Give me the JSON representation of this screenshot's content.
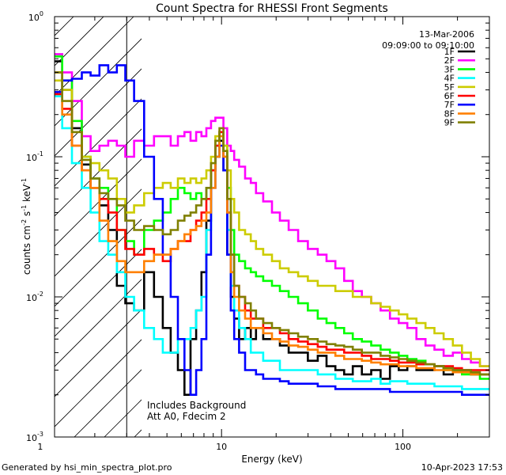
{
  "chart_data": {
    "type": "line",
    "title": "Count Spectra for RHESSI Front Segments",
    "xlabel": "Energy (keV)",
    "ylabel_parts": [
      "counts cm",
      "-2",
      " s",
      "-1",
      " keV",
      "-1"
    ],
    "xscale": "log",
    "yscale": "log",
    "xlim": [
      1.2,
      300
    ],
    "ylim": [
      0.001,
      1
    ],
    "x_ticks": [
      {
        "value": 1,
        "label": "1"
      },
      {
        "value": 10,
        "label": "10"
      },
      {
        "value": 100,
        "label": "100"
      }
    ],
    "y_ticks": [
      {
        "value": 0.001,
        "base": "10",
        "exp": "-3"
      },
      {
        "value": 0.01,
        "base": "10",
        "exp": "-2"
      },
      {
        "value": 0.1,
        "base": "10",
        "exp": "-1"
      },
      {
        "value": 1,
        "base": "10",
        "exp": "0"
      }
    ],
    "date": "13-Mar-2006",
    "time_range": "09:09:00 to 09:10:00",
    "shaded_region_xmax": 3,
    "annotations": [
      "Includes Background",
      "Att A0, Fdecim 2"
    ],
    "legend_position": "top-right",
    "x": [
      1.25,
      1.4,
      1.6,
      1.8,
      2.0,
      2.25,
      2.5,
      2.8,
      3.1,
      3.5,
      4.0,
      4.5,
      5.0,
      5.5,
      6.0,
      6.5,
      7.0,
      7.5,
      8.0,
      8.5,
      9.0,
      9.5,
      10.0,
      10.5,
      11.0,
      11.5,
      12,
      13,
      14,
      15,
      16,
      18,
      20,
      22,
      25,
      28,
      32,
      36,
      40,
      45,
      50,
      56,
      63,
      71,
      80,
      90,
      100,
      112,
      126,
      141,
      158,
      178,
      200,
      224,
      251,
      282
    ],
    "series": [
      {
        "name": "1F",
        "color": "#000000",
        "values": [
          0.48,
          0.3,
          0.16,
          0.088,
          0.06,
          0.045,
          0.03,
          0.012,
          0.009,
          0.008,
          0.015,
          0.01,
          0.006,
          0.004,
          0.003,
          0.002,
          0.005,
          0.008,
          0.015,
          0.035,
          0.08,
          0.12,
          0.13,
          0.08,
          0.02,
          0.01,
          0.007,
          0.005,
          0.006,
          0.005,
          0.006,
          0.005,
          0.005,
          0.0045,
          0.004,
          0.004,
          0.0035,
          0.0038,
          0.0032,
          0.003,
          0.0028,
          0.0032,
          0.0028,
          0.003,
          0.0026,
          0.0032,
          0.003,
          0.0032,
          0.003,
          0.003,
          0.0032,
          0.0028,
          0.003,
          0.003,
          0.0028,
          0.0028
        ]
      },
      {
        "name": "2F",
        "color": "#ff00ff",
        "values": [
          0.54,
          0.4,
          0.25,
          0.14,
          0.11,
          0.12,
          0.13,
          0.12,
          0.1,
          0.13,
          0.12,
          0.14,
          0.14,
          0.12,
          0.14,
          0.15,
          0.13,
          0.15,
          0.14,
          0.16,
          0.18,
          0.19,
          0.19,
          0.16,
          0.12,
          0.11,
          0.095,
          0.085,
          0.07,
          0.065,
          0.055,
          0.048,
          0.04,
          0.035,
          0.03,
          0.025,
          0.022,
          0.02,
          0.018,
          0.016,
          0.013,
          0.011,
          0.01,
          0.009,
          0.008,
          0.007,
          0.0065,
          0.006,
          0.005,
          0.0045,
          0.0042,
          0.0038,
          0.004,
          0.0036,
          0.0034,
          0.0032
        ]
      },
      {
        "name": "3F",
        "color": "#00ff00",
        "values": [
          0.52,
          0.35,
          0.18,
          0.1,
          0.07,
          0.06,
          0.05,
          0.03,
          0.025,
          0.02,
          0.03,
          0.035,
          0.04,
          0.05,
          0.06,
          0.055,
          0.05,
          0.055,
          0.05,
          0.06,
          0.08,
          0.1,
          0.15,
          0.12,
          0.06,
          0.03,
          0.02,
          0.018,
          0.016,
          0.015,
          0.014,
          0.013,
          0.012,
          0.011,
          0.01,
          0.009,
          0.008,
          0.007,
          0.0065,
          0.006,
          0.0055,
          0.005,
          0.0048,
          0.0045,
          0.0042,
          0.004,
          0.0038,
          0.0036,
          0.0035,
          0.0033,
          0.0032,
          0.003,
          0.003,
          0.0028,
          0.0028,
          0.0026
        ]
      },
      {
        "name": "4F",
        "color": "#00ffff",
        "values": [
          0.27,
          0.16,
          0.09,
          0.06,
          0.04,
          0.025,
          0.02,
          0.015,
          0.01,
          0.008,
          0.006,
          0.005,
          0.004,
          0.004,
          0.005,
          0.005,
          0.006,
          0.008,
          0.01,
          0.03,
          0.08,
          0.12,
          0.15,
          0.1,
          0.03,
          0.012,
          0.008,
          0.006,
          0.005,
          0.004,
          0.004,
          0.0035,
          0.0035,
          0.003,
          0.003,
          0.003,
          0.003,
          0.0028,
          0.0028,
          0.0026,
          0.0026,
          0.0025,
          0.0025,
          0.0026,
          0.0024,
          0.0025,
          0.0025,
          0.0024,
          0.0024,
          0.0024,
          0.0023,
          0.0023,
          0.0023,
          0.0022,
          0.0022,
          0.0022
        ]
      },
      {
        "name": "5F",
        "color": "#cccc00",
        "values": [
          0.35,
          0.3,
          0.15,
          0.1,
          0.09,
          0.08,
          0.07,
          0.05,
          0.04,
          0.045,
          0.055,
          0.06,
          0.065,
          0.06,
          0.07,
          0.065,
          0.07,
          0.065,
          0.07,
          0.08,
          0.1,
          0.14,
          0.15,
          0.12,
          0.08,
          0.05,
          0.04,
          0.03,
          0.028,
          0.025,
          0.022,
          0.02,
          0.018,
          0.016,
          0.015,
          0.014,
          0.013,
          0.012,
          0.012,
          0.011,
          0.011,
          0.01,
          0.01,
          0.009,
          0.0085,
          0.008,
          0.0075,
          0.007,
          0.0065,
          0.006,
          0.0055,
          0.005,
          0.0045,
          0.004,
          0.0036,
          0.0032
        ]
      },
      {
        "name": "6F",
        "color": "#ff0000",
        "values": [
          0.28,
          0.22,
          0.12,
          0.08,
          0.06,
          0.05,
          0.04,
          0.03,
          0.022,
          0.02,
          0.022,
          0.02,
          0.018,
          0.022,
          0.025,
          0.025,
          0.03,
          0.035,
          0.04,
          0.05,
          0.08,
          0.12,
          0.15,
          0.1,
          0.04,
          0.02,
          0.012,
          0.01,
          0.008,
          0.007,
          0.007,
          0.006,
          0.006,
          0.0055,
          0.005,
          0.0048,
          0.0046,
          0.0044,
          0.0042,
          0.0042,
          0.004,
          0.004,
          0.0038,
          0.0036,
          0.0036,
          0.0035,
          0.0034,
          0.0034,
          0.0033,
          0.0033,
          0.0032,
          0.0032,
          0.0031,
          0.003,
          0.003,
          0.003
        ]
      },
      {
        "name": "7F",
        "color": "#0000ff",
        "values": [
          0.29,
          0.35,
          0.36,
          0.4,
          0.38,
          0.45,
          0.4,
          0.45,
          0.35,
          0.25,
          0.1,
          0.05,
          0.02,
          0.01,
          0.005,
          0.003,
          0.002,
          0.003,
          0.005,
          0.02,
          0.06,
          0.1,
          0.12,
          0.08,
          0.02,
          0.008,
          0.005,
          0.004,
          0.003,
          0.003,
          0.0028,
          0.0026,
          0.0026,
          0.0025,
          0.0024,
          0.0024,
          0.0024,
          0.0023,
          0.0023,
          0.0022,
          0.0022,
          0.0022,
          0.0022,
          0.0022,
          0.0022,
          0.0021,
          0.0021,
          0.0021,
          0.0021,
          0.0021,
          0.0021,
          0.0021,
          0.0021,
          0.002,
          0.002,
          0.002
        ]
      },
      {
        "name": "8F",
        "color": "#ff8000",
        "values": [
          0.4,
          0.2,
          0.12,
          0.08,
          0.06,
          0.035,
          0.025,
          0.018,
          0.015,
          0.015,
          0.018,
          0.02,
          0.02,
          0.022,
          0.025,
          0.028,
          0.03,
          0.032,
          0.035,
          0.04,
          0.06,
          0.1,
          0.14,
          0.1,
          0.04,
          0.015,
          0.01,
          0.008,
          0.007,
          0.006,
          0.006,
          0.0055,
          0.005,
          0.0048,
          0.0045,
          0.0044,
          0.0042,
          0.004,
          0.004,
          0.0038,
          0.0036,
          0.0036,
          0.0035,
          0.0034,
          0.0033,
          0.0033,
          0.0032,
          0.0032,
          0.0031,
          0.0031,
          0.003,
          0.003,
          0.0029,
          0.0029,
          0.0028,
          0.0028
        ]
      },
      {
        "name": "9F",
        "color": "#808000",
        "values": [
          0.4,
          0.25,
          0.15,
          0.095,
          0.07,
          0.055,
          0.05,
          0.045,
          0.035,
          0.03,
          0.032,
          0.03,
          0.028,
          0.03,
          0.035,
          0.038,
          0.04,
          0.045,
          0.05,
          0.06,
          0.09,
          0.13,
          0.16,
          0.11,
          0.05,
          0.02,
          0.012,
          0.01,
          0.009,
          0.008,
          0.007,
          0.0065,
          0.006,
          0.0058,
          0.0055,
          0.0052,
          0.005,
          0.0048,
          0.0046,
          0.0045,
          0.0044,
          0.0042,
          0.004,
          0.004,
          0.0038,
          0.0037,
          0.0036,
          0.0035,
          0.0034,
          0.0033,
          0.0032,
          0.0031,
          0.003,
          0.003,
          0.0029,
          0.0028
        ]
      }
    ]
  },
  "footer": {
    "left": "Generated by hsi_min_spectra_plot.pro",
    "right": "10-Apr-2023 17:53"
  }
}
